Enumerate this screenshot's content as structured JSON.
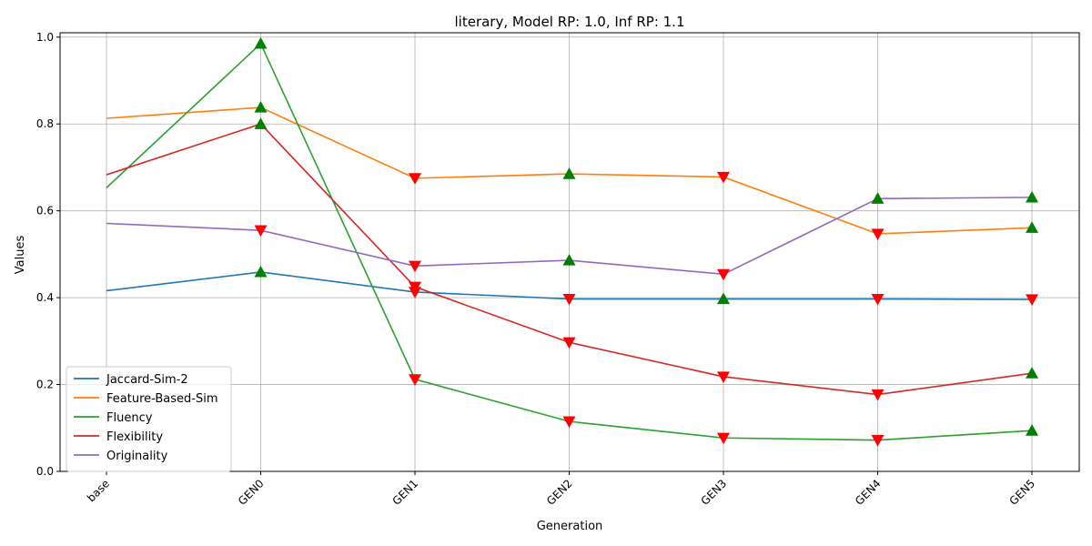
{
  "chart_data": {
    "type": "line",
    "title": "literary, Model RP: 1.0, Inf RP: 1.1",
    "xlabel": "Generation",
    "ylabel": "Values",
    "categories": [
      "base",
      "GEN0",
      "GEN1",
      "GEN2",
      "GEN3",
      "GEN4",
      "GEN5"
    ],
    "ylim": [
      0,
      1.01
    ],
    "yticks": [
      "0.0",
      "0.2",
      "0.4",
      "0.6",
      "0.8",
      "1.0"
    ],
    "grid": true,
    "legend_position": "lower-left",
    "marker_colors": {
      "up": "#008000",
      "down": "#ff0000"
    },
    "series": [
      {
        "name": "Jaccard-Sim-2",
        "color": "#1f77b4",
        "values": [
          0.416,
          0.459,
          0.413,
          0.397,
          0.397,
          0.397,
          0.396
        ],
        "markers": [
          null,
          "up",
          "down",
          "down",
          "up",
          "down",
          "down"
        ]
      },
      {
        "name": "Feature-Based-Sim",
        "color": "#ff7f0e",
        "values": [
          0.813,
          0.838,
          0.675,
          0.685,
          0.678,
          0.547,
          0.561
        ],
        "markers": [
          null,
          "up",
          "down",
          "up",
          "down",
          "down",
          "up"
        ]
      },
      {
        "name": "Fluency",
        "color": "#2ca02c",
        "values": [
          0.653,
          0.985,
          0.212,
          0.115,
          0.077,
          0.072,
          0.094
        ],
        "markers": [
          null,
          "up",
          "down",
          "down",
          "down",
          "down",
          "up"
        ]
      },
      {
        "name": "Flexibility",
        "color": "#d62728",
        "values": [
          0.683,
          0.8,
          0.425,
          0.297,
          0.218,
          0.177,
          0.226
        ],
        "markers": [
          null,
          "up",
          "down",
          "down",
          "down",
          "down",
          "up"
        ]
      },
      {
        "name": "Originality",
        "color": "#9467bd",
        "values": [
          0.571,
          0.555,
          0.473,
          0.486,
          0.454,
          0.628,
          0.631
        ],
        "markers": [
          null,
          "down",
          "down",
          "up",
          "down",
          "up",
          "up"
        ]
      }
    ]
  }
}
